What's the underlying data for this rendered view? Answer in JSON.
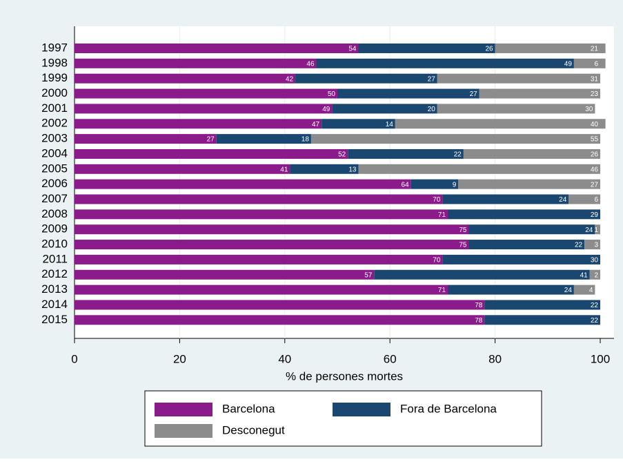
{
  "chart_data": {
    "type": "stacked-barh",
    "categories": [
      "1997",
      "1998",
      "1999",
      "2000",
      "2001",
      "2002",
      "2003",
      "2004",
      "2005",
      "2006",
      "2007",
      "2008",
      "2009",
      "2010",
      "2011",
      "2012",
      "2013",
      "2014",
      "2015"
    ],
    "series": [
      {
        "name": "Barcelona",
        "color": "#8b1a8b",
        "values": [
          54,
          46,
          42,
          50,
          49,
          47,
          27,
          52,
          41,
          64,
          70,
          71,
          75,
          75,
          70,
          57,
          71,
          78,
          78
        ]
      },
      {
        "name": "Fora de Barcelona",
        "color": "#1a476f",
        "values": [
          26,
          49,
          27,
          27,
          20,
          14,
          18,
          22,
          13,
          9,
          24,
          29,
          24,
          22,
          30,
          41,
          24,
          22,
          22
        ]
      },
      {
        "name": "Desconegut",
        "color": "#8c8c8c",
        "values": [
          21,
          6,
          31,
          23,
          30,
          40,
          55,
          26,
          46,
          27,
          6,
          null,
          1,
          3,
          null,
          2,
          4,
          null,
          null
        ]
      }
    ],
    "xlabel": "% de persones mortes",
    "xlim": [
      0,
      100
    ],
    "xticks": [
      0,
      20,
      40,
      60,
      80,
      100
    ],
    "grid": true
  }
}
